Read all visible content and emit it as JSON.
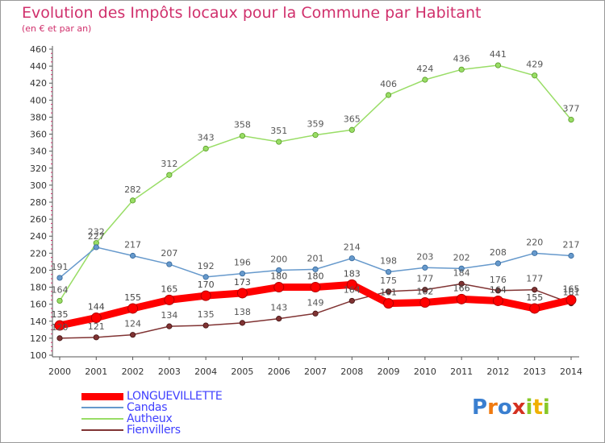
{
  "chart_data": {
    "type": "line",
    "title": "Evolution des Impôts locaux pour la Commune par Habitant",
    "subtitle": "(en € et par an)",
    "categories": [
      "2000",
      "2001",
      "2002",
      "2003",
      "2004",
      "2005",
      "2006",
      "2007",
      "2008",
      "2009",
      "2010",
      "2011",
      "2012",
      "2013",
      "2014"
    ],
    "y_ticks": [
      "100",
      "120",
      "140",
      "160",
      "180",
      "200",
      "220",
      "240",
      "260",
      "280",
      "300",
      "320",
      "340",
      "360",
      "380",
      "400",
      "420",
      "440",
      "460"
    ],
    "ylim": [
      100,
      460
    ],
    "grid": false,
    "legend_position": "bottom-left",
    "series": [
      {
        "name": "LONGUEVILLETTE",
        "color": "#ff0000",
        "values": [
          135,
          144,
          155,
          165,
          170,
          173,
          180,
          180,
          183,
          161,
          162,
          166,
          164,
          155,
          165
        ],
        "labels": [
          "135",
          "144",
          "155",
          "165",
          "170",
          "173",
          "180",
          "180",
          "183",
          "161",
          "162",
          "166",
          "164",
          "155",
          "165"
        ]
      },
      {
        "name": "Candas",
        "color": "#6699cc",
        "values": [
          191,
          227,
          217,
          207,
          192,
          196,
          200,
          201,
          214,
          198,
          203,
          202,
          208,
          220,
          217
        ],
        "labels": [
          "191",
          "227",
          "217",
          "207",
          "192",
          "196",
          "200",
          "201",
          "214",
          "198",
          "203",
          "202",
          "208",
          "220",
          "217"
        ]
      },
      {
        "name": "Autheux",
        "color": "#99dd66",
        "values": [
          164,
          232,
          282,
          312,
          343,
          358,
          351,
          359,
          365,
          406,
          424,
          436,
          441,
          429,
          377
        ],
        "labels": [
          "164",
          "232",
          "282",
          "312",
          "343",
          "358",
          "351",
          "359",
          "365",
          "406",
          "424",
          "436",
          "441",
          "429",
          "377"
        ]
      },
      {
        "name": "Fienvillers",
        "color": "#803333",
        "values": [
          120,
          121,
          124,
          134,
          135,
          138,
          143,
          149,
          164,
          175,
          177,
          184,
          176,
          177,
          161
        ],
        "labels": [
          "120",
          "121",
          "124",
          "134",
          "135",
          "138",
          "143",
          "149",
          "164",
          "175",
          "177",
          "184",
          "176",
          "177",
          "161"
        ]
      }
    ]
  },
  "logo": {
    "text": "Proxiti",
    "colors": [
      "#3a7fd0",
      "#f07a10",
      "#3a7fd0",
      "#d43020",
      "#88c828",
      "#f0b000",
      "#88c828"
    ]
  }
}
